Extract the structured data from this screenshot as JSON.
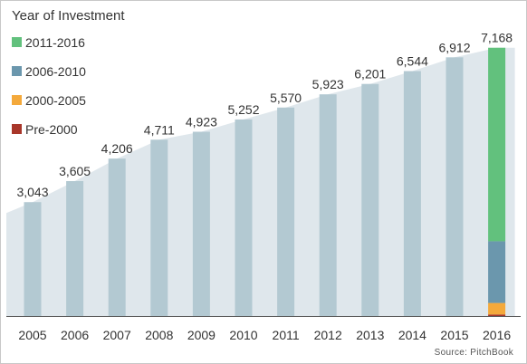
{
  "chart_data": {
    "type": "bar",
    "categories": [
      "2005",
      "2006",
      "2007",
      "2008",
      "2009",
      "2010",
      "2011",
      "2012",
      "2013",
      "2014",
      "2015",
      "2016"
    ],
    "values": [
      3043,
      3605,
      4206,
      4711,
      4923,
      5252,
      5570,
      5923,
      6201,
      6544,
      6912,
      7168
    ],
    "value_labels": [
      "3,043",
      "3,605",
      "4,206",
      "4,711",
      "4,923",
      "5,252",
      "5,570",
      "5,923",
      "6,201",
      "6,544",
      "6,912",
      "7,168"
    ],
    "stacked_last_bar": {
      "category": "2016",
      "series": [
        {
          "name": "Pre-2000",
          "value": 40
        },
        {
          "name": "2000-2005",
          "value": 308
        },
        {
          "name": "2006-2010",
          "value": 1650
        },
        {
          "name": "2011-2016",
          "value": 5170
        }
      ]
    },
    "ylim": [
      0,
      7500
    ],
    "grid": false,
    "legend_title": "Year of Investment",
    "legend_position": "top-left",
    "area_background": true
  },
  "legend": {
    "title": "Year of Investment",
    "items": [
      {
        "label": "2011-2016",
        "color": "#62c17d"
      },
      {
        "label": "2006-2010",
        "color": "#6b97ad"
      },
      {
        "label": "2000-2005",
        "color": "#f4a93b"
      },
      {
        "label": "Pre-2000",
        "color": "#a8362a"
      }
    ]
  },
  "colors": {
    "bar": "#b3c9d2",
    "area": "#dfe7ec",
    "axis": "#555555",
    "text": "#333333"
  },
  "source": "Source: PitchBook"
}
